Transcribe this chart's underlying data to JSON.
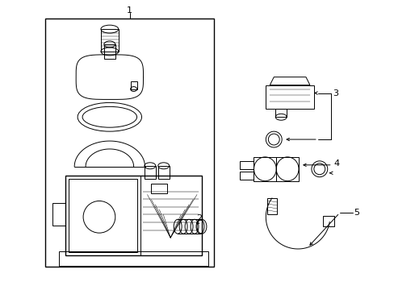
{
  "background_color": "#ffffff",
  "line_color": "#000000",
  "lw_main": 1.0,
  "lw_thin": 0.7,
  "lw_detail": 0.4,
  "label_fontsize": 8,
  "figsize": [
    4.89,
    3.6
  ],
  "dpi": 100
}
